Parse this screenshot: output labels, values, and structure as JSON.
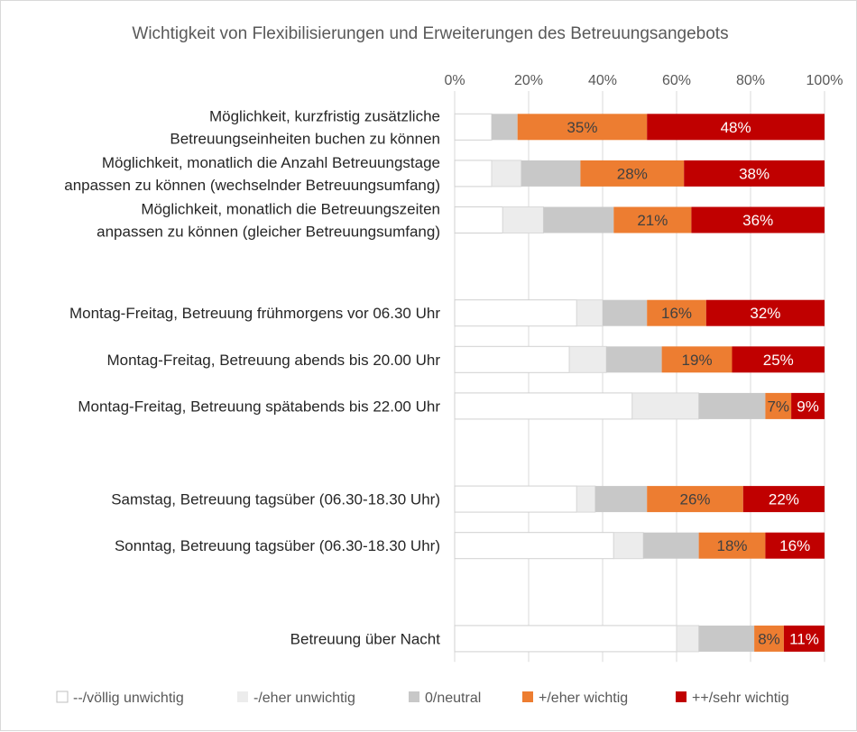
{
  "chart_data": {
    "type": "bar",
    "orientation": "horizontal",
    "stacked": "100%",
    "title": "Wichtigkeit von Flexibilisierungen und Erweiterungen des Betreuungsangebots",
    "xlim": [
      0,
      100
    ],
    "x_ticks": [
      "0%",
      "20%",
      "40%",
      "60%",
      "80%",
      "100%"
    ],
    "grid": true,
    "legend_position": "bottom",
    "categories": [
      [
        "Möglichkeit, kurzfristig zusätzliche",
        "Betreuungseinheiten buchen zu können"
      ],
      [
        "Möglichkeit, monatlich die Anzahl Betreuungstage",
        "anpassen zu können (wechselnder Betreuungsumfang)"
      ],
      [
        "Möglichkeit, monatlich die Betreuungszeiten",
        "anpassen zu können (gleicher Betreuungsumfang)"
      ],
      null,
      [
        "Montag-Freitag, Betreuung frühmorgens vor 06.30 Uhr"
      ],
      [
        "Montag-Freitag, Betreuung abends bis 20.00 Uhr"
      ],
      [
        "Montag-Freitag, Betreuung spätabends bis 22.00 Uhr"
      ],
      null,
      [
        "Samstag, Betreuung tagsüber (06.30-18.30 Uhr)"
      ],
      [
        "Sonntag, Betreuung tagsüber (06.30-18.30 Uhr)"
      ],
      null,
      [
        "Betreuung über Nacht"
      ]
    ],
    "series": [
      {
        "name": "--/völlig unwichtig",
        "color": "#ffffff",
        "values": [
          10,
          10,
          13,
          null,
          33,
          31,
          48,
          null,
          33,
          43,
          null,
          60
        ],
        "labels": false
      },
      {
        "name": "-/eher unwichtig",
        "color": "#ececec",
        "values": [
          0,
          8,
          11,
          null,
          7,
          10,
          18,
          null,
          5,
          8,
          null,
          6
        ],
        "labels": false
      },
      {
        "name": "0/neutral",
        "color": "#c8c8c8",
        "values": [
          7,
          16,
          19,
          null,
          12,
          15,
          18,
          null,
          14,
          15,
          null,
          15
        ],
        "labels": false
      },
      {
        "name": "+/eher wichtig",
        "color": "#ed7d31",
        "values": [
          35,
          28,
          21,
          null,
          16,
          19,
          7,
          null,
          26,
          18,
          null,
          8
        ],
        "labels": true,
        "label_color": "#404040"
      },
      {
        "name": "++/sehr wichtig",
        "color": "#c00000",
        "values": [
          48,
          38,
          36,
          null,
          32,
          25,
          9,
          null,
          22,
          16,
          null,
          11
        ],
        "labels": true,
        "label_color": "#ffffff"
      }
    ]
  }
}
